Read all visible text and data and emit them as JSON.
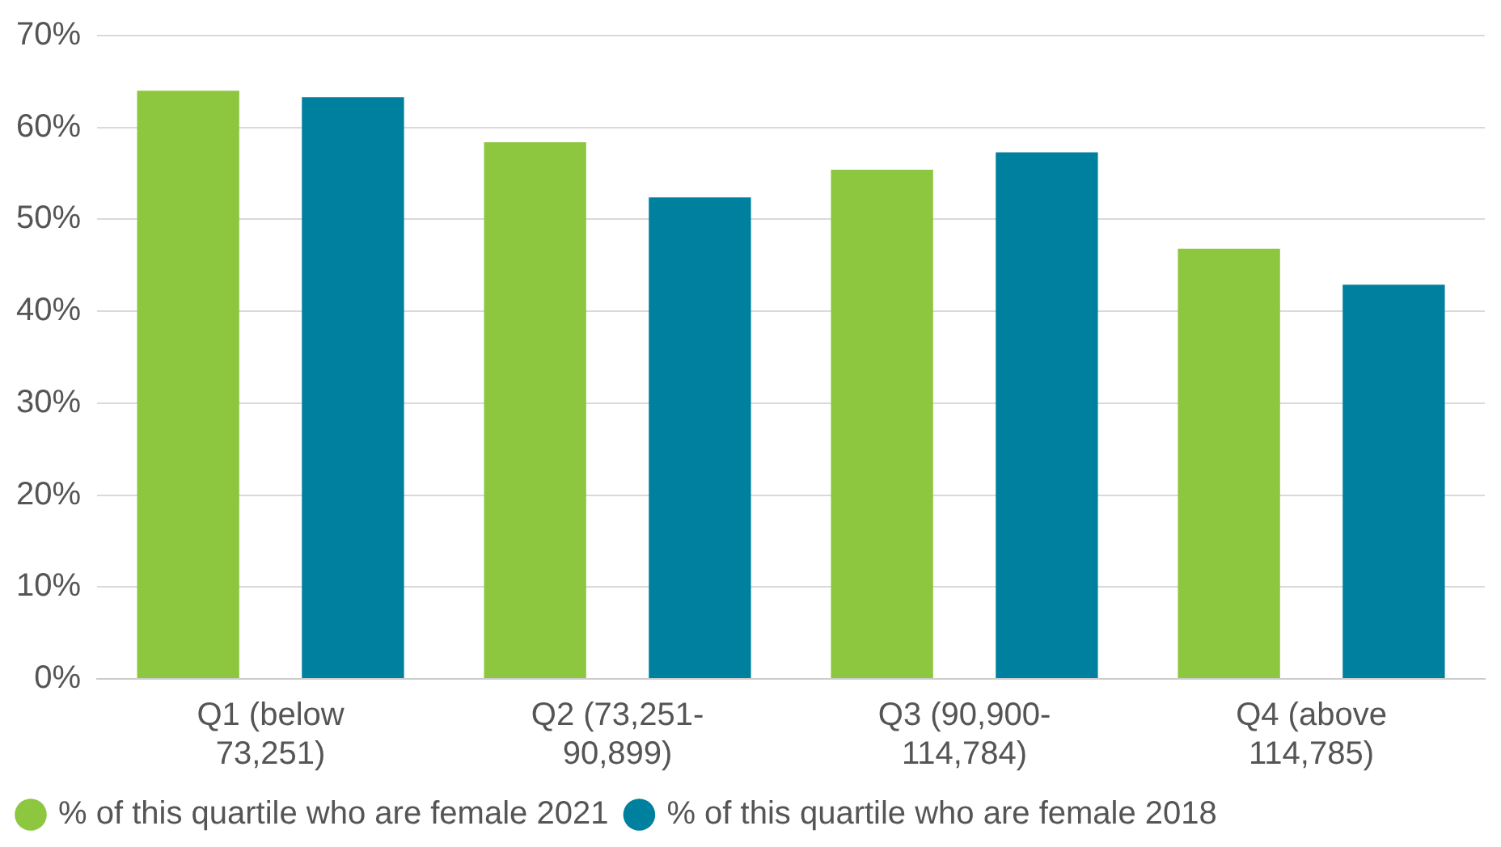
{
  "chart_data": {
    "type": "bar",
    "categories": [
      "Q1 (below\n73,251)",
      "Q2 (73,251-\n90,899)",
      "Q3 (90,900-\n114,784)",
      "Q4 (above\n114,785)"
    ],
    "series": [
      {
        "name": "% of this quartile who are female 2021",
        "color": "#8dc63f",
        "values": [
          64.0,
          58.4,
          55.4,
          46.8
        ]
      },
      {
        "name": "% of this quartile who are female 2018",
        "color": "#00809f",
        "values": [
          63.3,
          52.4,
          57.3,
          42.9
        ]
      }
    ],
    "ylim": [
      0,
      70
    ],
    "yticks": [
      {
        "value": 0,
        "label": "0%"
      },
      {
        "value": 10,
        "label": "10%"
      },
      {
        "value": 20,
        "label": "20%"
      },
      {
        "value": 30,
        "label": "30%"
      },
      {
        "value": 40,
        "label": "40%"
      },
      {
        "value": 50,
        "label": "50%"
      },
      {
        "value": 60,
        "label": "60%"
      },
      {
        "value": 70,
        "label": "70%"
      }
    ],
    "grid": "y",
    "legend": "bottom"
  }
}
